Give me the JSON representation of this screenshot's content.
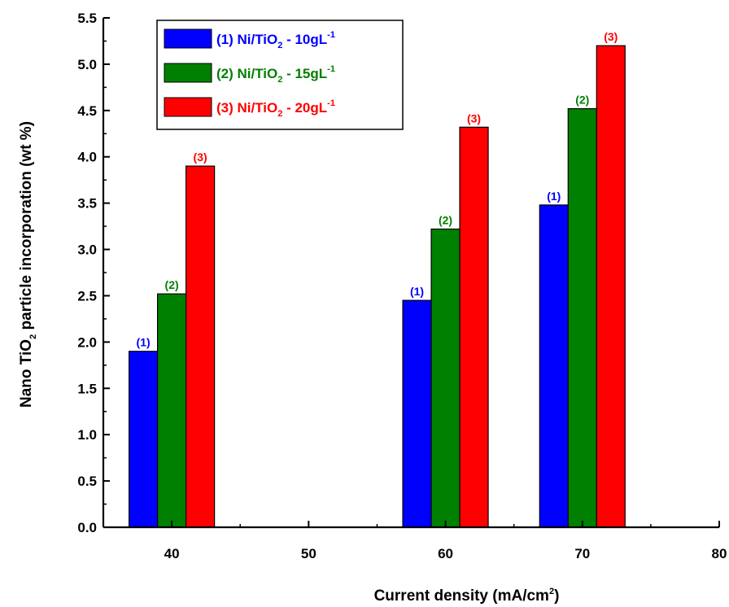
{
  "chart_data": {
    "type": "bar",
    "xlabel": "Current density (mA/cm",
    "xlabel_sup": "2",
    "xlabel_end": ")",
    "ylabel_pre": "Nano TiO",
    "ylabel_sub": "2",
    "ylabel_post": " particle incorporation (wt %)",
    "xlim": [
      35,
      80
    ],
    "ylim": [
      0,
      5.5
    ],
    "xticks": [
      "40",
      "50",
      "60",
      "70",
      "80"
    ],
    "yticks": [
      "0.0",
      "0.5",
      "1.0",
      "1.5",
      "2.0",
      "2.5",
      "3.0",
      "3.5",
      "4.0",
      "4.5",
      "5.0",
      "5.5"
    ],
    "groups": [
      40,
      60,
      70
    ],
    "series": [
      {
        "name": "(1) Ni/TiO",
        "sub": "2",
        "suffix": " - 10gL",
        "sup": "-1",
        "label": "(1)",
        "color": "#0000ff",
        "values": [
          1.9,
          2.45,
          3.48
        ]
      },
      {
        "name": "(2) Ni/TiO",
        "sub": "2",
        "suffix": " - 15gL",
        "sup": "-1",
        "label": "(2)",
        "color": "#008000",
        "values": [
          2.52,
          3.22,
          4.52
        ]
      },
      {
        "name": "(3) Ni/TiO",
        "sub": "2",
        "suffix": " - 20gL",
        "sup": "-1",
        "label": "(3)",
        "color": "#ff0000",
        "values": [
          3.9,
          4.32,
          5.2
        ]
      }
    ],
    "legend": "top-left",
    "grid": false
  }
}
